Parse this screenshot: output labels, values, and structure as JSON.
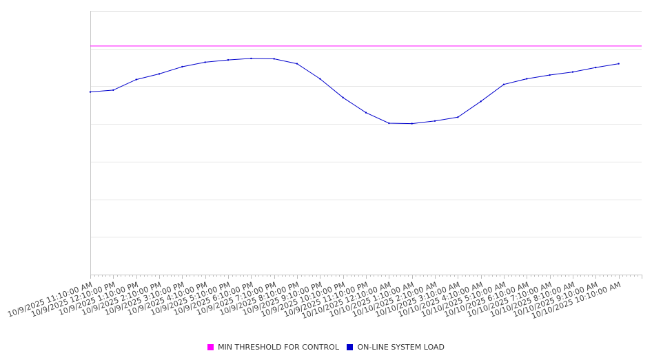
{
  "chart_data": {
    "type": "line",
    "title": "",
    "xlabel": "",
    "ylabel": "",
    "y_axis_labels_shown": false,
    "grid": "horizontal",
    "legend_position": "bottom",
    "ylim": [
      0,
      7000
    ],
    "x": [
      "10/9/2025 11:10:00 AM",
      "10/9/2025 12:10:00 PM",
      "10/9/2025 1:10:00 PM",
      "10/9/2025 2:10:00 PM",
      "10/9/2025 3:10:00 PM",
      "10/9/2025 4:10:00 PM",
      "10/9/2025 5:10:00 PM",
      "10/9/2025 6:10:00 PM",
      "10/9/2025 7:10:00 PM",
      "10/9/2025 8:10:00 PM",
      "10/9/2025 9:10:00 PM",
      "10/9/2025 10:10:00 PM",
      "10/9/2025 11:10:00 PM",
      "10/10/2025 12:10:00 AM",
      "10/10/2025 1:10:00 AM",
      "10/10/2025 2:10:00 AM",
      "10/10/2025 3:10:00 AM",
      "10/10/2025 4:10:00 AM",
      "10/10/2025 5:10:00 AM",
      "10/10/2025 6:10:00 AM",
      "10/10/2025 7:10:00 AM",
      "10/10/2025 8:10:00 AM",
      "10/10/2025 9:10:00 AM",
      "10/10/2025 10:10:00 AM"
    ],
    "series": [
      {
        "name": "MIN THRESHOLD FOR CONTROL",
        "color": "#ff00ff",
        "values": [
          6070,
          6070,
          6070,
          6070,
          6070,
          6070,
          6070,
          6070,
          6070,
          6070,
          6070,
          6070,
          6070,
          6070,
          6070,
          6070,
          6070,
          6070,
          6070,
          6070,
          6070,
          6070,
          6070,
          6070
        ]
      },
      {
        "name": "ON-LINE SYSTEM LOAD",
        "color": "#0000cc",
        "values": [
          4850,
          4900,
          5180,
          5330,
          5520,
          5640,
          5700,
          5740,
          5730,
          5600,
          5200,
          4700,
          4300,
          4020,
          4010,
          4080,
          4180,
          4600,
          5050,
          5200,
          5300,
          5380,
          5500,
          5600
        ]
      }
    ]
  }
}
